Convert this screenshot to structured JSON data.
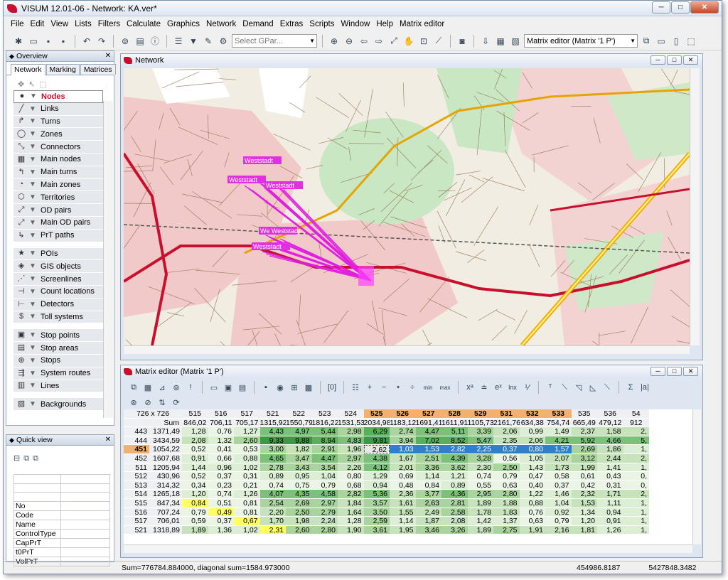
{
  "app": {
    "title": "VISUM 12.01-06 - Network: KA.ver*"
  },
  "menu": [
    "File",
    "Edit",
    "View",
    "Lists",
    "Filters",
    "Calculate",
    "Graphics",
    "Network",
    "Demand",
    "Extras",
    "Scripts",
    "Window",
    "Help",
    "Matrix editor"
  ],
  "toolbar": {
    "gpar_placeholder": "Select GPar...",
    "matrix_select": "Matrix editor (Matrix '1 P')"
  },
  "overview": {
    "title": "Overview",
    "tabs": [
      "Network",
      "Marking",
      "Matrices"
    ],
    "items": [
      [
        "Nodes",
        "node-icon",
        "●"
      ],
      [
        "Links",
        "link-icon",
        "╱"
      ],
      [
        "Turns",
        "turn-icon",
        "↱"
      ],
      [
        "Zones",
        "zone-icon",
        "◯"
      ],
      [
        "Connectors",
        "connector-icon",
        "⤡"
      ],
      [
        "Main nodes",
        "main-node-icon",
        "▦"
      ],
      [
        "Main turns",
        "main-turn-icon",
        "↰"
      ],
      [
        "Main zones",
        "main-zone-icon",
        "◔"
      ],
      [
        "Territories",
        "territory-icon",
        "⬡"
      ],
      [
        "OD pairs",
        "od-pair-icon",
        "⤢"
      ],
      [
        "Main OD pairs",
        "main-od-pair-icon",
        "⤢"
      ],
      [
        "PrT paths",
        "prt-path-icon",
        "↳"
      ],
      "gap",
      [
        "POIs",
        "poi-icon",
        "★"
      ],
      [
        "GIS objects",
        "gis-icon",
        "◈"
      ],
      [
        "Screenlines",
        "screenline-icon",
        "⋰"
      ],
      [
        "Count locations",
        "count-location-icon",
        "⊣"
      ],
      [
        "Detectors",
        "detector-icon",
        "⊢"
      ],
      [
        "Toll systems",
        "toll-icon",
        "$"
      ],
      "gap",
      [
        "Stop points",
        "stop-point-icon",
        "▣"
      ],
      [
        "Stop areas",
        "stop-area-icon",
        "▤"
      ],
      [
        "Stops",
        "stop-icon",
        "⊕"
      ],
      [
        "System routes",
        "system-route-icon",
        "⇶"
      ],
      [
        "Lines",
        "line-icon",
        "▥"
      ],
      "gap",
      [
        "Backgrounds",
        "background-icon",
        "▨"
      ]
    ]
  },
  "quickview": {
    "title": "Quick view",
    "fields": [
      "No",
      "Code",
      "Name",
      "ControlType",
      "CapPrT",
      "t0PrT",
      "VolPrT"
    ]
  },
  "network": {
    "title": "Network",
    "labels": [
      "Weststadt",
      "Weststadt",
      "Weststadt",
      "We Weststadt",
      "Weststadt"
    ]
  },
  "matrix": {
    "title": "Matrix editor (Matrix '1 P')",
    "size": "726 x 726",
    "sum_label": "Sum",
    "cols": [
      "515",
      "516",
      "517",
      "521",
      "522",
      "523",
      "524",
      "525",
      "526",
      "527",
      "528",
      "529",
      "531",
      "532",
      "533",
      "535",
      "536",
      "54"
    ],
    "col_hl": [
      7,
      8,
      9,
      10,
      11,
      12,
      13,
      14
    ],
    "col_sums": [
      "846,02",
      "706,11",
      "705,17",
      "1315,92",
      "1550,79",
      "1816,22",
      "1531,53",
      "2034,98",
      "1183,12",
      "1691,41",
      "1611,91",
      "1105,73",
      "2161,76",
      "634,38",
      "754,74",
      "665,49",
      "479,12",
      "912"
    ],
    "rows": [
      [
        "443",
        "1371,49",
        [
          "1,28",
          "0,76",
          "1,27",
          "4,43",
          "4,97",
          "5,44",
          "2,98",
          "6,29",
          "2,74",
          "4,47",
          "5,11",
          "3,39",
          "2,06",
          "0,99",
          "1,49",
          "2,37",
          "1,58",
          "2,"
        ]
      ],
      [
        "444",
        "3434,59",
        [
          "2,08",
          "1,32",
          "2,60",
          "9,33",
          "9,88",
          "8,94",
          "4,83",
          "9,81",
          "3,94",
          "7,02",
          "8,52",
          "5,47",
          "2,35",
          "2,06",
          "4,21",
          "5,92",
          "4,66",
          "5,"
        ]
      ],
      [
        "451",
        "1054,22",
        [
          "0,52",
          "0,41",
          "0,53",
          "3,00",
          "1,82",
          "2,91",
          "1,96",
          "2,62",
          "1,03",
          "1,53",
          "2,82",
          "2,25",
          "0,37",
          "0,80",
          "1,57",
          "2,69",
          "1,86",
          "1,"
        ]
      ],
      [
        "452",
        "1607,68",
        [
          "0,91",
          "0,66",
          "0,88",
          "4,65",
          "3,47",
          "4,47",
          "2,97",
          "4,38",
          "1,67",
          "2,51",
          "4,39",
          "3,28",
          "0,56",
          "1,05",
          "2,07",
          "3,12",
          "2,44",
          "2,"
        ]
      ],
      [
        "511",
        "1205,94",
        [
          "1,44",
          "0,96",
          "1,02",
          "2,78",
          "3,43",
          "3,54",
          "2,26",
          "4,12",
          "2,01",
          "3,36",
          "3,62",
          "2,30",
          "2,50",
          "1,43",
          "1,73",
          "1,99",
          "1,41",
          "1,"
        ]
      ],
      [
        "512",
        "430,96",
        [
          "0,52",
          "0,37",
          "0,31",
          "0,89",
          "0,95",
          "1,04",
          "0,80",
          "1,29",
          "0,69",
          "1,14",
          "1,21",
          "0,74",
          "0,79",
          "0,47",
          "0,58",
          "0,61",
          "0,43",
          "0,"
        ]
      ],
      [
        "513",
        "314,32",
        [
          "0,34",
          "0,23",
          "0,21",
          "0,74",
          "0,75",
          "0,79",
          "0,68",
          "0,94",
          "0,48",
          "0,84",
          "0,89",
          "0,55",
          "0,63",
          "0,40",
          "0,37",
          "0,42",
          "0,31",
          "0,"
        ]
      ],
      [
        "514",
        "1265,18",
        [
          "1,20",
          "0,74",
          "1,26",
          "4,07",
          "4,35",
          "4,58",
          "2,82",
          "5,36",
          "2,36",
          "3,77",
          "4,36",
          "2,95",
          "2,80",
          "1,22",
          "1,46",
          "2,32",
          "1,71",
          "2,"
        ]
      ],
      [
        "515",
        "847,34",
        [
          "0,84",
          "0,51",
          "0,81",
          "2,54",
          "2,69",
          "2,97",
          "1,84",
          "3,57",
          "1,61",
          "2,63",
          "2,81",
          "1,89",
          "1,88",
          "0,88",
          "1,04",
          "1,53",
          "1,11",
          "1,"
        ]
      ],
      [
        "516",
        "707,24",
        [
          "0,79",
          "0,49",
          "0,81",
          "2,20",
          "2,50",
          "2,79",
          "1,64",
          "3,50",
          "1,55",
          "2,49",
          "2,58",
          "1,78",
          "1,83",
          "0,76",
          "0,92",
          "1,34",
          "0,94",
          "1,"
        ]
      ],
      [
        "517",
        "706,01",
        [
          "0,59",
          "0,37",
          "0,67",
          "1,70",
          "1,98",
          "2,24",
          "1,28",
          "2,59",
          "1,14",
          "1,87",
          "2,08",
          "1,42",
          "1,37",
          "0,63",
          "0,79",
          "1,20",
          "0,91",
          "1,"
        ]
      ],
      [
        "521",
        "1318,89",
        [
          "1,89",
          "1,36",
          "1,02",
          "2,31",
          "2,60",
          "2,80",
          "1,90",
          "3,61",
          "1,95",
          "3,46",
          "3,26",
          "1,89",
          "2,75",
          "1,91",
          "2,16",
          "1,81",
          "1,26",
          "1,"
        ]
      ]
    ],
    "selected_row": "451"
  },
  "status": {
    "left": "Sum=776784.884000, diagonal sum=1584.973000",
    "mid": "454986.8187",
    "right": "5427848.3482"
  }
}
